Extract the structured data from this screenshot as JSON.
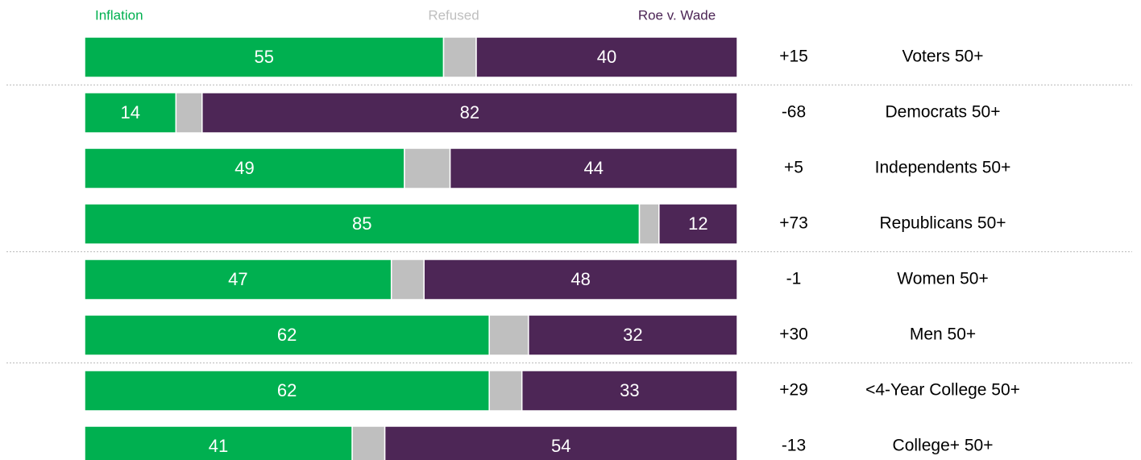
{
  "chart_data": {
    "type": "stacked_barh",
    "categories": [
      "Voters 50+",
      "Democrats 50+",
      "Independents 50+",
      "Republicans 50+",
      "Women 50+",
      "Men 50+",
      "<4-Year College 50+",
      "College+ 50+"
    ],
    "series": [
      {
        "name": "Inflation",
        "color": "#00b050",
        "values": [
          55,
          14,
          49,
          85,
          47,
          62,
          62,
          41
        ],
        "labeled": true
      },
      {
        "name": "Refused",
        "color": "#bfbfbf",
        "values": [
          5,
          4,
          7,
          3,
          5,
          6,
          5,
          5
        ],
        "labeled": false
      },
      {
        "name": "Roe v. Wade",
        "color": "#4d2656",
        "values": [
          40,
          82,
          44,
          12,
          48,
          32,
          33,
          54
        ],
        "labeled": true
      }
    ],
    "margins": [
      "+15",
      "-68",
      "+5",
      "+73",
      "-1",
      "+30",
      "+29",
      "-13"
    ],
    "xlim": [
      0,
      100
    ],
    "separators_after": [
      0,
      3,
      5
    ]
  }
}
